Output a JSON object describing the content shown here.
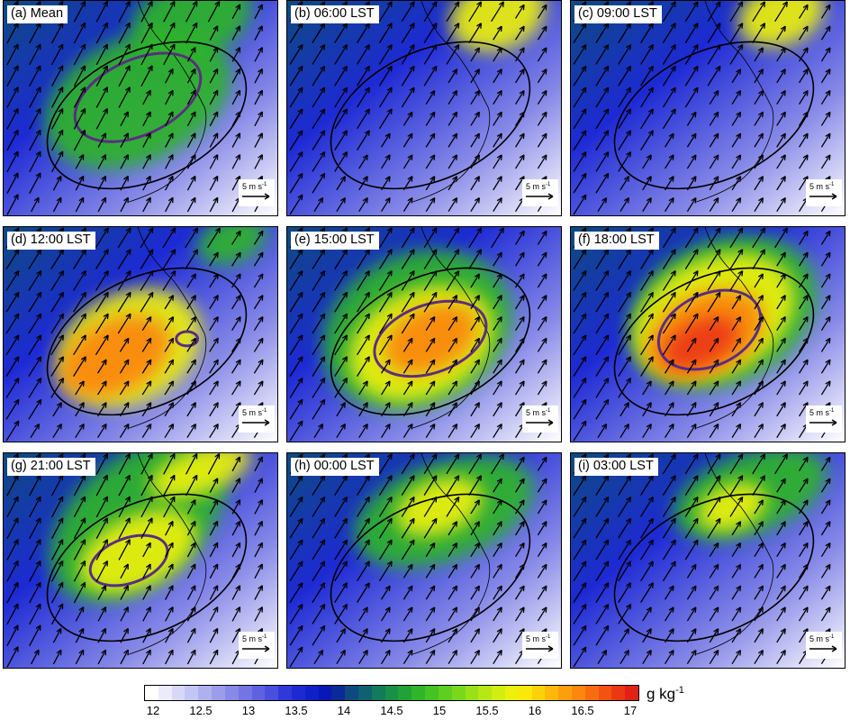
{
  "panels": [
    {
      "label": "(a) Mean",
      "reference_vector": "5 m s",
      "reference_unit_exp": "-1"
    },
    {
      "label": "(b) 06:00 LST",
      "reference_vector": "5 m s",
      "reference_unit_exp": "-1"
    },
    {
      "label": "(c) 09:00 LST",
      "reference_vector": "5 m s",
      "reference_unit_exp": "-1"
    },
    {
      "label": "(d) 12:00 LST",
      "reference_vector": "5 m s",
      "reference_unit_exp": "-1"
    },
    {
      "label": "(e) 15:00 LST",
      "reference_vector": "5 m s",
      "reference_unit_exp": "-1"
    },
    {
      "label": "(f) 18:00 LST",
      "reference_vector": "5 m s",
      "reference_unit_exp": "-1"
    },
    {
      "label": "(g) 21:00 LST",
      "reference_vector": "5 m s",
      "reference_unit_exp": "-1"
    },
    {
      "label": "(h) 00:00 LST",
      "reference_vector": "5 m s",
      "reference_unit_exp": "-1"
    },
    {
      "label": "(i) 03:00 LST",
      "reference_vector": "5 m s",
      "reference_unit_exp": "-1"
    }
  ],
  "colorbar": {
    "ticks": [
      "12",
      "12.5",
      "13",
      "13.5",
      "14",
      "14.5",
      "15",
      "15.5",
      "16",
      "16.5",
      "17"
    ],
    "units": "g kg",
    "units_exp": "-1",
    "colors": [
      "#ffffff",
      "#ebebfb",
      "#d7d8f7",
      "#c3c5f3",
      "#afb1ef",
      "#9b9deb",
      "#8789e7",
      "#7375e3",
      "#5f62e0",
      "#4a4edc",
      "#3038d8",
      "#1d2ad4",
      "#1020c8",
      "#0818b4",
      "#0a2a98",
      "#0d4a80",
      "#0f6070",
      "#137a5c",
      "#1a8f48",
      "#22a236",
      "#2fb42a",
      "#45c224",
      "#5ece20",
      "#7ad81c",
      "#98e018",
      "#b6e814",
      "#d2ee10",
      "#ecf00c",
      "#fbe80a",
      "#fdd10a",
      "#fdb80a",
      "#fd9f0c",
      "#fc860e",
      "#f86c10",
      "#f25212",
      "#eb3814",
      "#e12016"
    ]
  },
  "colors": {
    "enhancement_contour": "#5a2d82",
    "ellipse": "#000000",
    "vector": "#000000"
  }
}
